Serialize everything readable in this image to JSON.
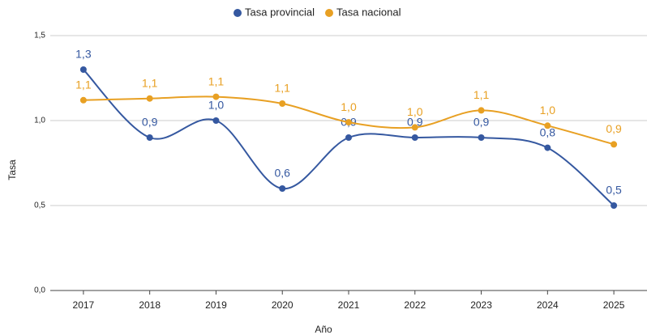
{
  "chart_data": {
    "type": "line",
    "x_label": "Año",
    "y_label": "Tasa",
    "categories": [
      "2017",
      "2018",
      "2019",
      "2020",
      "2021",
      "2022",
      "2023",
      "2024",
      "2025"
    ],
    "series": [
      {
        "name": "Tasa provincial",
        "color": "#3558a0",
        "values": [
          1.3,
          0.9,
          1.0,
          0.6,
          0.9,
          0.9,
          0.9,
          0.84,
          0.5
        ],
        "value_labels": [
          "1,3",
          "0,9",
          "1,0",
          "0,6",
          "0,9",
          "0,9",
          "0,9",
          "0,8",
          "0,5"
        ]
      },
      {
        "name": "Tasa nacional",
        "color": "#e8a023",
        "values": [
          1.12,
          1.13,
          1.14,
          1.1,
          0.99,
          0.96,
          1.06,
          0.97,
          0.86
        ],
        "value_labels": [
          "1,1",
          "1,1",
          "1,1",
          "1,1",
          "1,0",
          "1,0",
          "1,1",
          "1,0",
          "0,9"
        ]
      }
    ],
    "ylim": [
      0,
      1.5
    ],
    "yticks": [
      {
        "value": 0,
        "label": "0,0"
      },
      {
        "value": 0.5,
        "label": "0,5"
      },
      {
        "value": 1,
        "label": "1,0"
      },
      {
        "value": 1.5,
        "label": "1,5"
      }
    ],
    "grid": true,
    "legend": "top",
    "smooth": true
  }
}
